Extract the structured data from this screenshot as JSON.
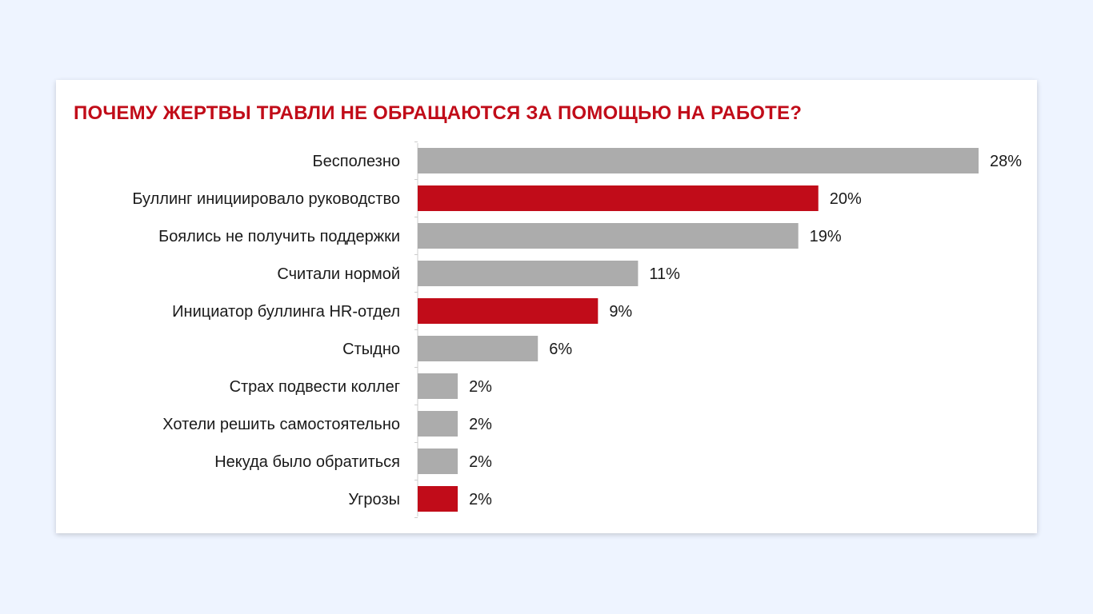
{
  "chart_data": {
    "type": "bar",
    "orientation": "horizontal",
    "title": "ПОЧЕМУ ЖЕРТВЫ ТРАВЛИ НЕ ОБРАЩАЮТСЯ ЗА ПОМОЩЬЮ НА РАБОТЕ?",
    "categories": [
      "Бесполезно",
      "Буллинг инициировало руководство",
      "Боялись не получить поддержки",
      "Считали нормой",
      "Инициатор буллинга HR-отдел",
      "Стыдно",
      "Страх подвести коллег",
      "Хотели решить самостоятельно",
      "Некуда было обратиться",
      "Угрозы"
    ],
    "values": [
      28,
      20,
      19,
      11,
      9,
      6,
      2,
      2,
      2,
      2
    ],
    "value_labels": [
      "28%",
      "20%",
      "19%",
      "11%",
      "9%",
      "6%",
      "2%",
      "2%",
      "2%",
      "2%"
    ],
    "highlighted": [
      false,
      true,
      false,
      false,
      true,
      false,
      false,
      false,
      false,
      true
    ],
    "colors": {
      "default": "#acacac",
      "highlight": "#c10c19",
      "title": "#c10c19",
      "axis": "#cccccc"
    },
    "xlim": [
      0,
      28
    ],
    "grid": false,
    "legend": "none"
  }
}
